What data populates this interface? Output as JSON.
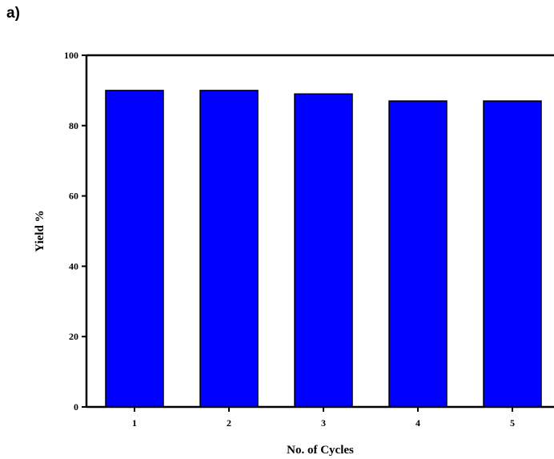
{
  "panel_label": "a)",
  "chart_data": {
    "type": "bar",
    "categories": [
      "1",
      "2",
      "3",
      "4",
      "5"
    ],
    "values": [
      90,
      90,
      89,
      87,
      87
    ],
    "title": "",
    "xlabel": "No. of Cycles",
    "ylabel": "Yield %",
    "ylim": [
      0,
      100
    ],
    "yticks": [
      0,
      20,
      40,
      60,
      80,
      100
    ],
    "grid": false,
    "legend": "none",
    "bar_color": "#0000ff",
    "bar_edge_color": "#000000"
  }
}
